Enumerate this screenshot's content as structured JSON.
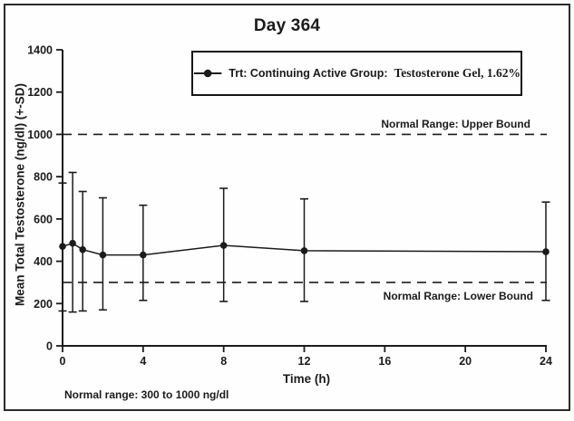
{
  "figure": {
    "title": "Day 364",
    "footnote": "Normal range: 300 to 1000 ng/dl"
  },
  "legend": {
    "marker": "filled-circle-on-line",
    "label_prefix": "Trt: Continuing Active Group:",
    "label_product": "Testosterone Gel, 1.62%"
  },
  "chart_data": {
    "type": "line",
    "title": "Day 364",
    "xlabel": "Time (h)",
    "ylabel": "Mean Total Testosterone (ng/dl) (+-SD)",
    "x": [
      0,
      0.5,
      1,
      2,
      4,
      8,
      12,
      24
    ],
    "series": [
      {
        "name": "Trt: Continuing Active Group: Testosterone Gel, 1.62%",
        "values": [
          470,
          485,
          455,
          430,
          430,
          475,
          450,
          445
        ],
        "sd_upper": [
          770,
          820,
          730,
          700,
          665,
          745,
          695,
          680
        ],
        "sd_lower": [
          165,
          160,
          165,
          170,
          215,
          210,
          210,
          215
        ]
      }
    ],
    "xlim": [
      0,
      24
    ],
    "ylim": [
      0,
      1400
    ],
    "xticks": [
      0,
      4,
      8,
      12,
      16,
      20,
      24
    ],
    "yticks": [
      0,
      200,
      400,
      600,
      800,
      1000,
      1200,
      1400
    ],
    "reference_lines": [
      {
        "value": 1000,
        "style": "dashed",
        "label": "Normal Range: Upper Bound"
      },
      {
        "value": 300,
        "style": "dashed",
        "label": "Normal Range: Lower Bound"
      }
    ],
    "grid": false,
    "legend_position": "top-center-boxed",
    "colors": {
      "line": "#1b1b1b",
      "background": "#fefefe"
    }
  }
}
